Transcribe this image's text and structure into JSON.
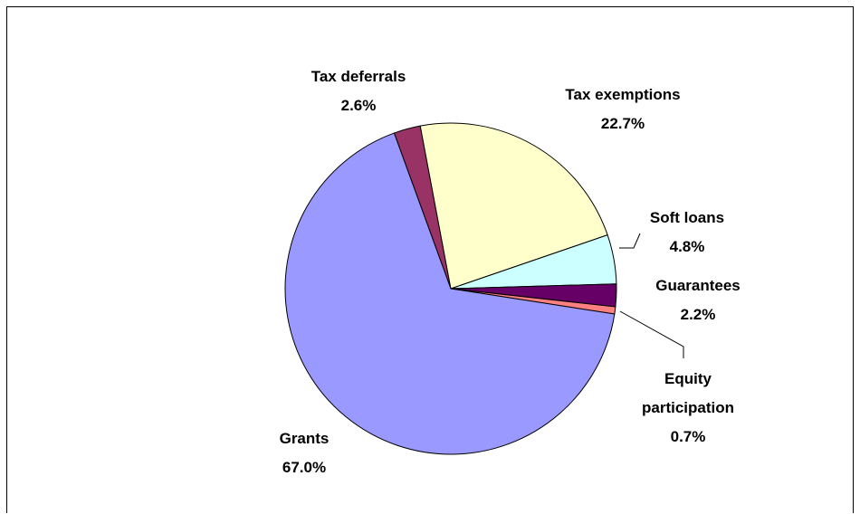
{
  "chart_data": {
    "type": "pie",
    "title": "",
    "start_angle_deg": -110,
    "direction": "clockwise",
    "slices": [
      {
        "label": "Tax deferrals",
        "value": 2.6,
        "display": "2.6%",
        "color": "#993366"
      },
      {
        "label": "Tax exemptions",
        "value": 22.7,
        "display": "22.7%",
        "color": "#FFFFCC"
      },
      {
        "label": "Soft loans",
        "value": 4.8,
        "display": "4.8%",
        "color": "#CCFFFF"
      },
      {
        "label": "Guarantees",
        "value": 2.2,
        "display": "2.2%",
        "color": "#660066"
      },
      {
        "label": "Equity participation",
        "value": 0.7,
        "display": "0.7%",
        "color": "#FF8080"
      },
      {
        "label": "Grants",
        "value": 67.0,
        "display": "67.0%",
        "color": "#9999FF"
      }
    ]
  }
}
